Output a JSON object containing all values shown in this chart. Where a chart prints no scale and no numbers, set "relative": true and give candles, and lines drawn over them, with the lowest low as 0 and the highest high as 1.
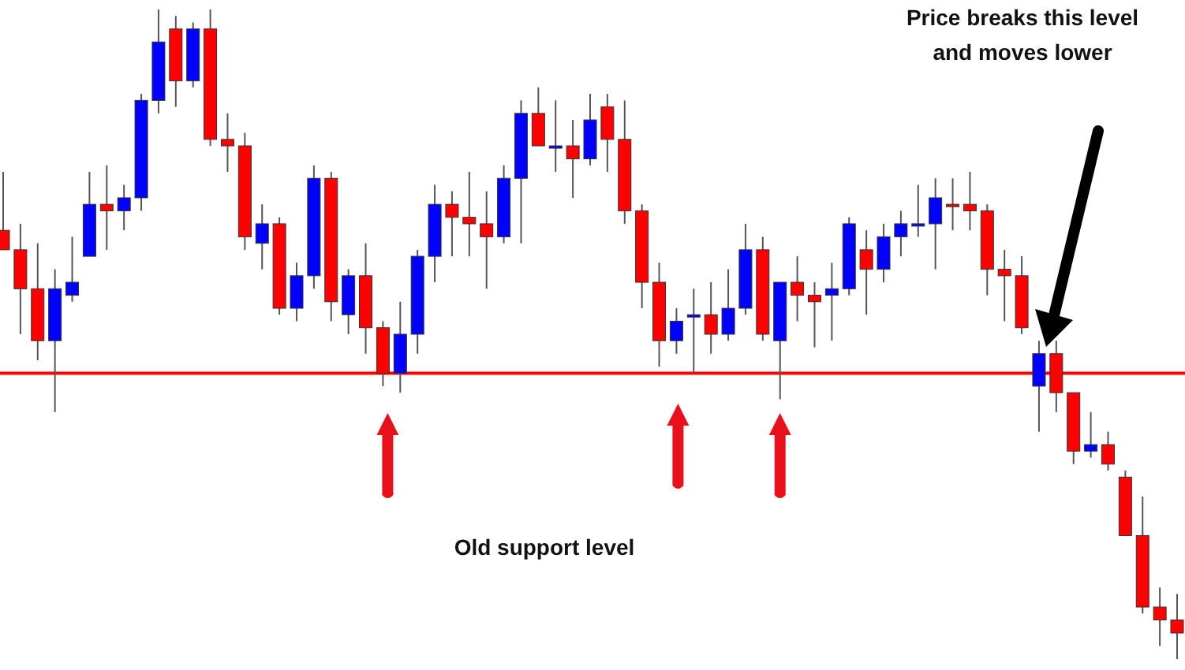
{
  "chart_data": {
    "type": "candlestick",
    "relative": true,
    "categories": [
      null,
      null,
      null,
      null,
      null,
      null,
      null,
      null,
      null,
      null,
      null,
      null,
      null,
      null,
      null,
      null,
      null,
      null,
      null,
      null,
      null,
      null,
      null,
      null,
      null,
      null,
      null,
      null,
      null,
      null,
      null,
      null,
      null,
      null,
      null,
      null,
      null,
      null,
      null,
      null,
      null,
      null,
      null,
      null,
      null,
      null,
      null,
      null,
      null,
      null,
      null,
      null,
      null,
      null,
      null,
      null,
      null,
      null,
      null,
      null,
      null,
      null,
      null,
      null,
      null,
      null,
      null,
      null,
      null
    ],
    "ohlc": [
      [
        0.66,
        0.75,
        0.63,
        0.63
      ],
      [
        0.63,
        0.67,
        0.5,
        0.57
      ],
      [
        0.57,
        0.64,
        0.46,
        0.49
      ],
      [
        0.49,
        0.6,
        0.38,
        0.57
      ],
      [
        0.56,
        0.65,
        0.55,
        0.58
      ],
      [
        0.62,
        0.75,
        0.62,
        0.7
      ],
      [
        0.7,
        0.76,
        0.63,
        0.69
      ],
      [
        0.69,
        0.73,
        0.66,
        0.71
      ],
      [
        0.71,
        0.87,
        0.69,
        0.86
      ],
      [
        0.86,
        1.0,
        0.84,
        0.95
      ],
      [
        0.97,
        0.99,
        0.85,
        0.89
      ],
      [
        0.89,
        0.98,
        0.88,
        0.97
      ],
      [
        0.97,
        1.0,
        0.79,
        0.8
      ],
      [
        0.8,
        0.84,
        0.75,
        0.79
      ],
      [
        0.79,
        0.81,
        0.63,
        0.65
      ],
      [
        0.64,
        0.7,
        0.6,
        0.67
      ],
      [
        0.67,
        0.68,
        0.53,
        0.54
      ],
      [
        0.54,
        0.61,
        0.52,
        0.59
      ],
      [
        0.59,
        0.76,
        0.57,
        0.74
      ],
      [
        0.74,
        0.75,
        0.52,
        0.55
      ],
      [
        0.53,
        0.6,
        0.5,
        0.59
      ],
      [
        0.59,
        0.64,
        0.47,
        0.51
      ],
      [
        0.51,
        0.52,
        0.42,
        0.44
      ],
      [
        0.44,
        0.55,
        0.41,
        0.5
      ],
      [
        0.5,
        0.63,
        0.47,
        0.62
      ],
      [
        0.62,
        0.73,
        0.58,
        0.7
      ],
      [
        0.7,
        0.72,
        0.62,
        0.68
      ],
      [
        0.68,
        0.75,
        0.62,
        0.67
      ],
      [
        0.67,
        0.72,
        0.57,
        0.65
      ],
      [
        0.65,
        0.76,
        0.64,
        0.74
      ],
      [
        0.74,
        0.86,
        0.64,
        0.84
      ],
      [
        0.84,
        0.88,
        0.79,
        0.79
      ],
      [
        0.79,
        0.86,
        0.75,
        0.79
      ],
      [
        0.79,
        0.83,
        0.71,
        0.77
      ],
      [
        0.77,
        0.87,
        0.76,
        0.83
      ],
      [
        0.85,
        0.87,
        0.75,
        0.8
      ],
      [
        0.8,
        0.86,
        0.67,
        0.69
      ],
      [
        0.69,
        0.7,
        0.54,
        0.58
      ],
      [
        0.58,
        0.61,
        0.45,
        0.49
      ],
      [
        0.49,
        0.54,
        0.47,
        0.52
      ],
      [
        0.53,
        0.57,
        0.44,
        0.53
      ],
      [
        0.53,
        0.58,
        0.47,
        0.5
      ],
      [
        0.5,
        0.6,
        0.49,
        0.54
      ],
      [
        0.54,
        0.67,
        0.53,
        0.63
      ],
      [
        0.63,
        0.65,
        0.49,
        0.5
      ],
      [
        0.49,
        0.58,
        0.4,
        0.58
      ],
      [
        0.58,
        0.62,
        0.52,
        0.56
      ],
      [
        0.56,
        0.58,
        0.48,
        0.55
      ],
      [
        0.56,
        0.61,
        0.49,
        0.57
      ],
      [
        0.57,
        0.68,
        0.56,
        0.67
      ],
      [
        0.63,
        0.66,
        0.53,
        0.6
      ],
      [
        0.6,
        0.67,
        0.58,
        0.65
      ],
      [
        0.65,
        0.69,
        0.62,
        0.67
      ],
      [
        0.67,
        0.73,
        0.65,
        0.67
      ],
      [
        0.67,
        0.74,
        0.6,
        0.71
      ],
      [
        0.7,
        0.74,
        0.66,
        0.7
      ],
      [
        0.7,
        0.75,
        0.66,
        0.69
      ],
      [
        0.69,
        0.7,
        0.56,
        0.6
      ],
      [
        0.6,
        0.63,
        0.52,
        0.59
      ],
      [
        0.59,
        0.62,
        0.5,
        0.51
      ],
      [
        0.42,
        0.49,
        0.35,
        0.47
      ],
      [
        0.47,
        0.49,
        0.38,
        0.41
      ],
      [
        0.41,
        0.41,
        0.3,
        0.32
      ],
      [
        0.32,
        0.38,
        0.31,
        0.33
      ],
      [
        0.33,
        0.35,
        0.29,
        0.3
      ],
      [
        0.28,
        0.29,
        0.19,
        0.19
      ],
      [
        0.19,
        0.25,
        0.07,
        0.08
      ],
      [
        0.08,
        0.11,
        0.02,
        0.06
      ],
      [
        0.06,
        0.1,
        0.0,
        0.04
      ]
    ],
    "colors": [
      "#ff0000",
      "#ff0000",
      "#ff0000",
      "#0000ff",
      "#0000ff",
      "#0000ff",
      "#ff0000",
      "#0000ff",
      "#0000ff",
      "#0000ff",
      "#ff0000",
      "#0000ff",
      "#ff0000",
      "#ff0000",
      "#ff0000",
      "#0000ff",
      "#ff0000",
      "#0000ff",
      "#0000ff",
      "#ff0000",
      "#0000ff",
      "#ff0000",
      "#ff0000",
      "#0000ff",
      "#0000ff",
      "#0000ff",
      "#ff0000",
      "#ff0000",
      "#ff0000",
      "#0000ff",
      "#0000ff",
      "#ff0000",
      "#0000ff",
      "#ff0000",
      "#0000ff",
      "#ff0000",
      "#ff0000",
      "#ff0000",
      "#ff0000",
      "#0000ff",
      "#0000ff",
      "#ff0000",
      "#0000ff",
      "#0000ff",
      "#ff0000",
      "#0000ff",
      "#ff0000",
      "#ff0000",
      "#0000ff",
      "#0000ff",
      "#ff0000",
      "#0000ff",
      "#0000ff",
      "#0000ff",
      "#0000ff",
      "#ff0000",
      "#ff0000",
      "#ff0000",
      "#ff0000",
      "#ff0000",
      "#0000ff",
      "#ff0000",
      "#ff0000",
      "#0000ff",
      "#ff0000",
      "#ff0000",
      "#ff0000",
      "#ff0000",
      "#ff0000"
    ],
    "ref_lines": [
      {
        "axis": "y",
        "value": 0.44,
        "color": "#ff0000",
        "line_style": "solid"
      }
    ],
    "annotations": [
      "Old support level",
      "Price breaks this level\nand moves lower"
    ]
  }
}
